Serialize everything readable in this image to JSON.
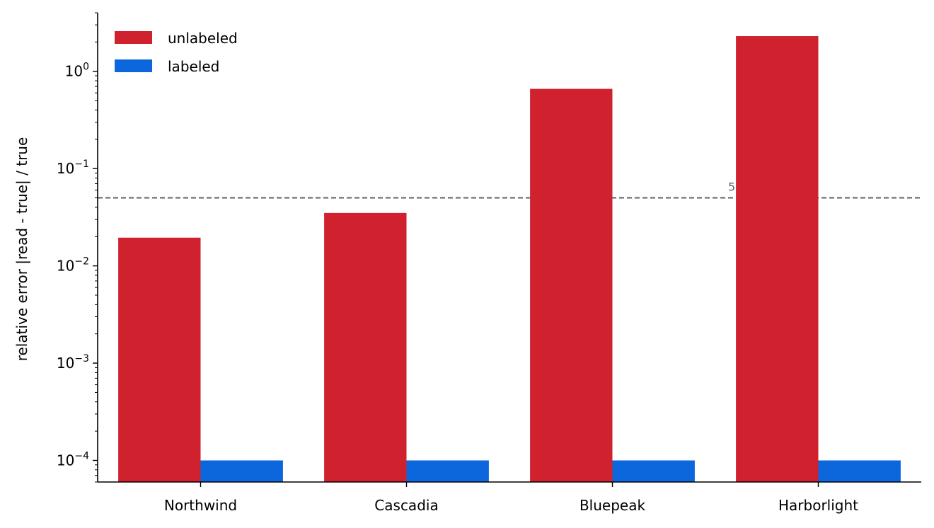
{
  "chart_data": {
    "type": "bar",
    "categories": [
      "Northwind",
      "Cascadia",
      "Bluepeak",
      "Harborlight"
    ],
    "series": [
      {
        "name": "unlabeled",
        "color": "#d0212f",
        "values": [
          0.0195,
          0.035,
          0.66,
          2.3
        ]
      },
      {
        "name": "labeled",
        "color": "#0b67db",
        "values": [
          0.0001,
          0.0001,
          0.0001,
          0.0001
        ]
      }
    ],
    "xlabel": "",
    "ylabel": "relative error |read - true| / true",
    "yscale": "log",
    "ylim": [
      6e-05,
      4
    ],
    "yticks": [
      {
        "value": 0.0001,
        "base": "10",
        "exp": "−4"
      },
      {
        "value": 0.001,
        "base": "10",
        "exp": "−3"
      },
      {
        "value": 0.01,
        "base": "10",
        "exp": "−2"
      },
      {
        "value": 0.1,
        "base": "10",
        "exp": "−1"
      },
      {
        "value": 1,
        "base": "10",
        "exp": "0"
      }
    ],
    "reference_line": {
      "value": 0.05,
      "label": "5% tolerance",
      "color": "#5a6270",
      "style": "dashed"
    },
    "legend_position": "top-left",
    "grid": false
  }
}
